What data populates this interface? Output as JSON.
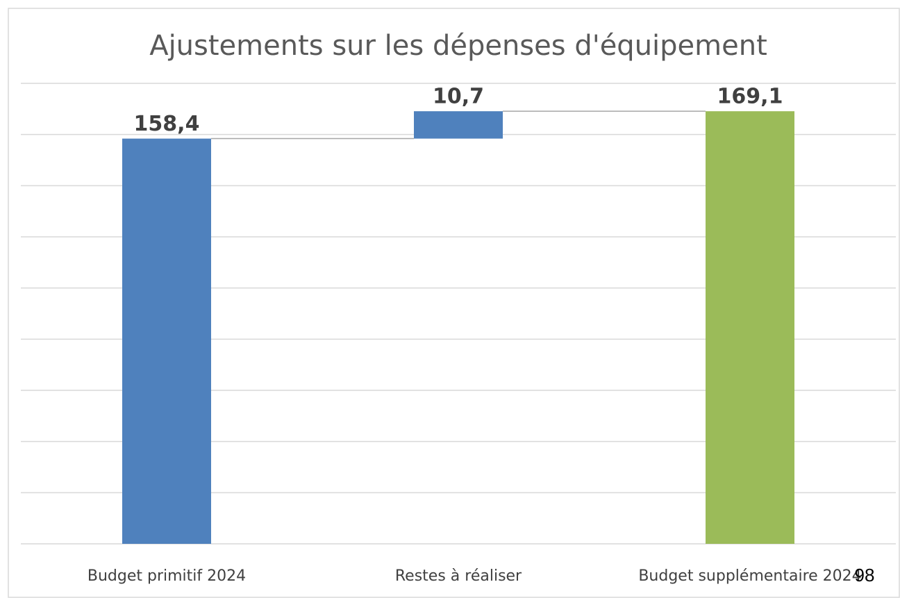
{
  "chart_data": {
    "type": "waterfall",
    "title": "Ajustements sur les dépenses d'équipement",
    "categories": [
      "Budget primitif 2024",
      "Restes à réaliser",
      "Budget supplémentaire 2024"
    ],
    "values": [
      158.4,
      10.7,
      169.1
    ],
    "value_labels": [
      "158,4",
      "10,7",
      "169,1"
    ],
    "measure": [
      "absolute",
      "relative",
      "total"
    ],
    "colors": [
      "#4f81bd",
      "#4f81bd",
      "#9bbb59"
    ],
    "ylim": [
      0,
      180
    ],
    "yticks": [
      0,
      20,
      40,
      60,
      80,
      100,
      120,
      140,
      160,
      180
    ],
    "grid": true
  },
  "page_number": "98"
}
